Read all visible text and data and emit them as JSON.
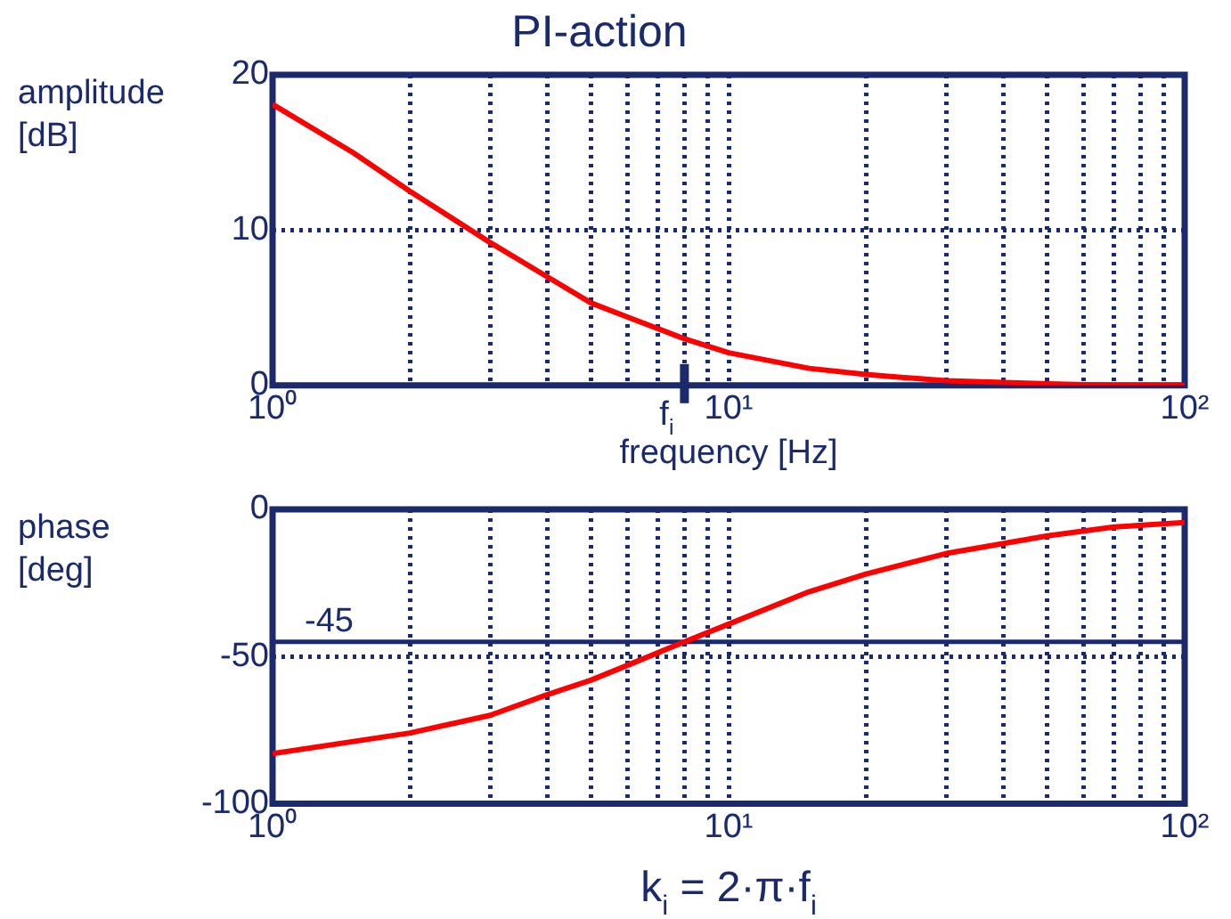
{
  "chart_data": [
    {
      "type": "line",
      "title": "PI-action",
      "xlabel": "frequency [Hz]",
      "ylabel": "amplitude [dB]",
      "log": "x",
      "grid": true,
      "legend": false,
      "marker": "none",
      "line_style": "solid",
      "x": [
        1,
        1.5,
        2,
        3,
        4,
        5,
        6,
        8,
        10,
        15,
        20,
        30,
        50,
        70,
        100
      ],
      "series": [
        {
          "color": "#ff0000",
          "values": [
            18.1,
            15,
            12.5,
            9.2,
            7,
            5.3,
            4.4,
            3,
            2.1,
            1.1,
            0.7,
            0.3,
            0.1,
            0,
            0
          ]
        }
      ],
      "xlim": [
        1,
        100
      ],
      "xticks": [
        {
          "value": 1,
          "label": "10⁰"
        },
        {
          "value": 2,
          "label": null
        },
        {
          "value": 3,
          "label": null
        },
        {
          "value": 4,
          "label": null
        },
        {
          "value": 5,
          "label": null
        },
        {
          "value": 6,
          "label": null
        },
        {
          "value": 7,
          "label": null
        },
        {
          "value": 8,
          "label": null
        },
        {
          "value": 9,
          "label": null
        },
        {
          "value": 10,
          "label": "10¹"
        },
        {
          "value": 20,
          "label": null
        },
        {
          "value": 30,
          "label": null
        },
        {
          "value": 40,
          "label": null
        },
        {
          "value": 50,
          "label": null
        },
        {
          "value": 60,
          "label": null
        },
        {
          "value": 70,
          "label": null
        },
        {
          "value": 80,
          "label": null
        },
        {
          "value": 90,
          "label": null
        },
        {
          "value": 100,
          "label": "10²"
        }
      ],
      "ylim": [
        0,
        20
      ],
      "yticks": [
        0,
        10,
        20
      ],
      "ref_lines": [
        {
          "axis": "x",
          "value": 8,
          "label": "f$_{i}$",
          "color": "#1a2a6c",
          "line_style": "solid"
        }
      ]
    },
    {
      "type": "line",
      "ylabel": "phase [deg]",
      "log": "x",
      "grid": true,
      "legend": false,
      "marker": "none",
      "line_style": "solid",
      "x": [
        1,
        2,
        3,
        4,
        5,
        6,
        8,
        10,
        15,
        20,
        30,
        50,
        70,
        100
      ],
      "series": [
        {
          "color": "#ff0000",
          "values": [
            -83,
            -76,
            -70,
            -63,
            -58,
            -53,
            -45,
            -39,
            -28,
            -22,
            -15,
            -9,
            -6,
            -4.5
          ]
        }
      ],
      "xlim": [
        1,
        100
      ],
      "xticks": [
        {
          "value": 1,
          "label": "10⁰"
        },
        {
          "value": 2,
          "label": null
        },
        {
          "value": 3,
          "label": null
        },
        {
          "value": 4,
          "label": null
        },
        {
          "value": 5,
          "label": null
        },
        {
          "value": 6,
          "label": null
        },
        {
          "value": 7,
          "label": null
        },
        {
          "value": 8,
          "label": null
        },
        {
          "value": 9,
          "label": null
        },
        {
          "value": 10,
          "label": "10¹"
        },
        {
          "value": 20,
          "label": null
        },
        {
          "value": 30,
          "label": null
        },
        {
          "value": 40,
          "label": null
        },
        {
          "value": 50,
          "label": null
        },
        {
          "value": 60,
          "label": null
        },
        {
          "value": 70,
          "label": null
        },
        {
          "value": 80,
          "label": null
        },
        {
          "value": 90,
          "label": null
        },
        {
          "value": 100,
          "label": "10²"
        }
      ],
      "ylim": [
        -100,
        0
      ],
      "yticks": [
        -100,
        -50,
        0
      ],
      "ref_lines": [
        {
          "axis": "y",
          "value": -45,
          "label": "-45",
          "color": "#1a2a6c",
          "line_style": "solid"
        }
      ],
      "annotations": [
        "k$_{i}$ = 2·π·f$_{i}$"
      ]
    }
  ]
}
